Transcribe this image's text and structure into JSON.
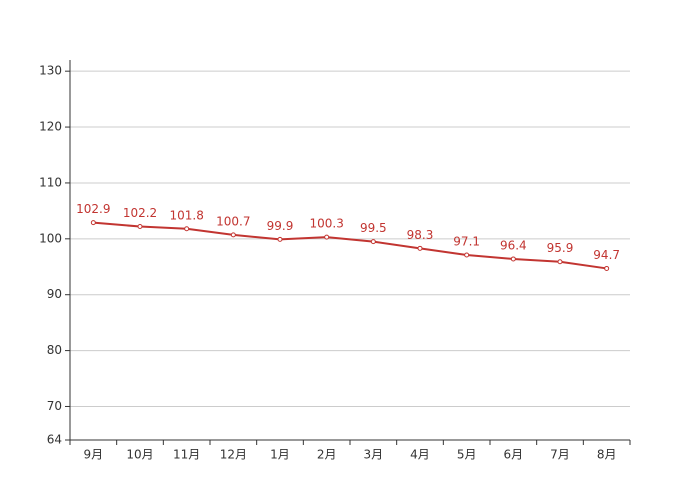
{
  "chart_data": {
    "type": "line",
    "categories": [
      "9月",
      "10月",
      "11月",
      "12月",
      "1月",
      "2月",
      "3月",
      "4月",
      "5月",
      "6月",
      "7月",
      "8月"
    ],
    "series": [
      {
        "color": "#c23531",
        "values": [
          102.9,
          102.2,
          101.8,
          100.7,
          99.9,
          100.3,
          99.5,
          98.3,
          97.1,
          96.4,
          95.9,
          94.7
        ]
      }
    ],
    "ylim": [
      64,
      132
    ],
    "yticks": [
      64,
      70,
      80,
      90,
      100,
      110,
      120,
      130
    ],
    "grid": true
  }
}
